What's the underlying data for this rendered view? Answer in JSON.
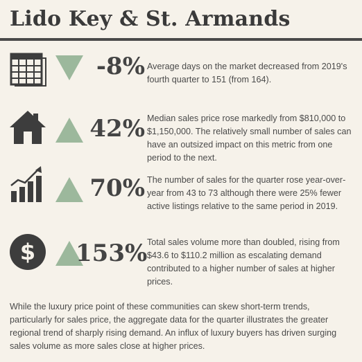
{
  "title": "Lido Key & St. Armands",
  "colors": {
    "arrow": "#9cb89c",
    "icon": "#3d3d3d",
    "rule": "#4a4a4a",
    "background": "#f6f2ea"
  },
  "rows": [
    {
      "icon": "calendar-icon",
      "direction": "down",
      "pct": "-8%",
      "text": "Average days on the market decreased from 2019's fourth quarter to 151 (from 164)."
    },
    {
      "icon": "house-icon",
      "direction": "up",
      "pct": "42%",
      "text": "Median sales price rose markedly from $810,000 to $1,150,000. The relatively small number of sales can have an outsized impact on this metric from one period to the next."
    },
    {
      "icon": "growth-chart-icon",
      "direction": "up",
      "pct": "70%",
      "text": "The number of sales for the quarter rose year-over-year from 43 to 73 although there were 25% fewer active listings relative to the same period in 2019."
    },
    {
      "icon": "dollar-coin-icon",
      "direction": "up",
      "pct": "153%",
      "text": "Total sales volume more than doubled, rising from $43.6 to $110.2 million as escalating demand contributed to a higher number of sales at higher prices."
    }
  ],
  "footer": "While the luxury price point of these communities can skew short-term trends, particularly for sales price, the aggregate data for the quarter illustrates the greater regional trend of sharply rising demand. An influx of luxury buyers has driven surging sales volume as more sales close at higher prices."
}
